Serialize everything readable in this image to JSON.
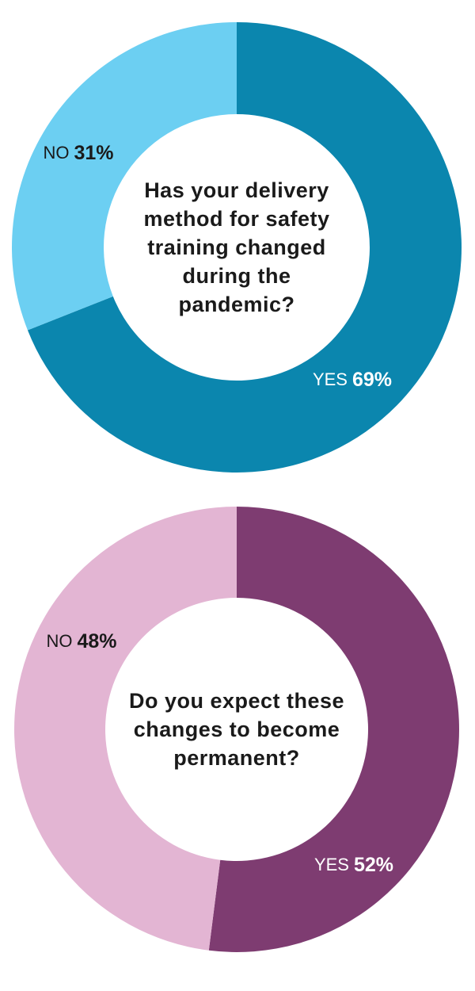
{
  "chart_data": [
    {
      "type": "pie",
      "title": "Has your delivery method for safety training changed during the pandemic?",
      "categories": [
        "YES",
        "NO"
      ],
      "values": [
        69,
        31
      ],
      "value_labels": [
        "69%",
        "31%"
      ],
      "colors": [
        "#0b86ae",
        "#6ccff2"
      ]
    },
    {
      "type": "pie",
      "title": "Do you expect these changes to become permanent?",
      "categories": [
        "YES",
        "NO"
      ],
      "values": [
        52,
        48
      ],
      "value_labels": [
        "52%",
        "48%"
      ],
      "colors": [
        "#7e3c71",
        "#e3b5d3"
      ]
    }
  ]
}
